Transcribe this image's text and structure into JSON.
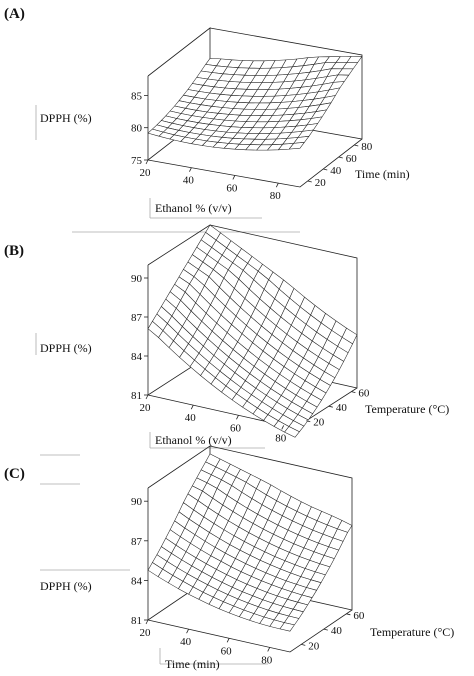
{
  "chart_data": [
    {
      "type": "surface",
      "panel": "(A)",
      "xlabel": "Ethanol % (v/v)",
      "ylabel": "Time (min)",
      "zlabel": "DPPH (%)",
      "x_ticks": [
        20,
        40,
        60,
        80
      ],
      "y_ticks": [
        20,
        40,
        60,
        80
      ],
      "z_ticks": [
        75,
        80,
        85
      ],
      "xlim": [
        20,
        90
      ],
      "ylim": [
        10,
        90
      ],
      "zlim": [
        75,
        88
      ],
      "surface": {
        "x_range": [
          20,
          90
        ],
        "y_range": [
          10,
          90
        ],
        "corner_z": {
          "x_min_y_min": 81.1,
          "x_max_y_min": 81.6,
          "x_min_y_max": 83.3,
          "x_max_y_max": 87.8
        },
        "min_z": 79.3,
        "min_at": [
          45,
          25
        ],
        "grid": 14
      }
    },
    {
      "type": "surface",
      "panel": "(B)",
      "xlabel": "Ethanol % (v/v)",
      "ylabel": "Temperature (°C)",
      "zlabel": "DPPH (%)",
      "x_ticks": [
        20,
        40,
        60,
        80
      ],
      "y_ticks": [
        20,
        40,
        60
      ],
      "z_ticks": [
        81,
        84,
        87,
        90
      ],
      "xlim": [
        20,
        85
      ],
      "ylim": [
        10,
        65
      ],
      "zlim": [
        81,
        91
      ],
      "surface": {
        "x_range": [
          20,
          85
        ],
        "y_range": [
          10,
          65
        ],
        "corner_z": {
          "x_min_y_min": 86.1,
          "x_max_y_min": 81.8,
          "x_min_y_max": 91.0,
          "x_max_y_max": 85.1
        },
        "min_z": 81.6,
        "min_at": [
          70,
          18
        ],
        "grid": 14
      }
    },
    {
      "type": "surface",
      "panel": "(C)",
      "xlabel": "Time (min)",
      "ylabel": "Temperature (°C)",
      "zlabel": "DPPH (%)",
      "x_ticks": [
        20,
        40,
        60,
        80
      ],
      "y_ticks": [
        20,
        40,
        60
      ],
      "z_ticks": [
        81,
        84,
        87,
        90
      ],
      "xlim": [
        20,
        90
      ],
      "ylim": [
        10,
        65
      ],
      "zlim": [
        81,
        91
      ],
      "surface": {
        "x_range": [
          20,
          90
        ],
        "y_range": [
          10,
          65
        ],
        "corner_z": {
          "x_min_y_min": 85.1,
          "x_max_y_min": 83.6,
          "x_min_y_max": 90.4,
          "x_max_y_max": 87.4
        },
        "min_z": 83.4,
        "min_at": [
          65,
          18
        ],
        "grid": 14
      }
    }
  ]
}
